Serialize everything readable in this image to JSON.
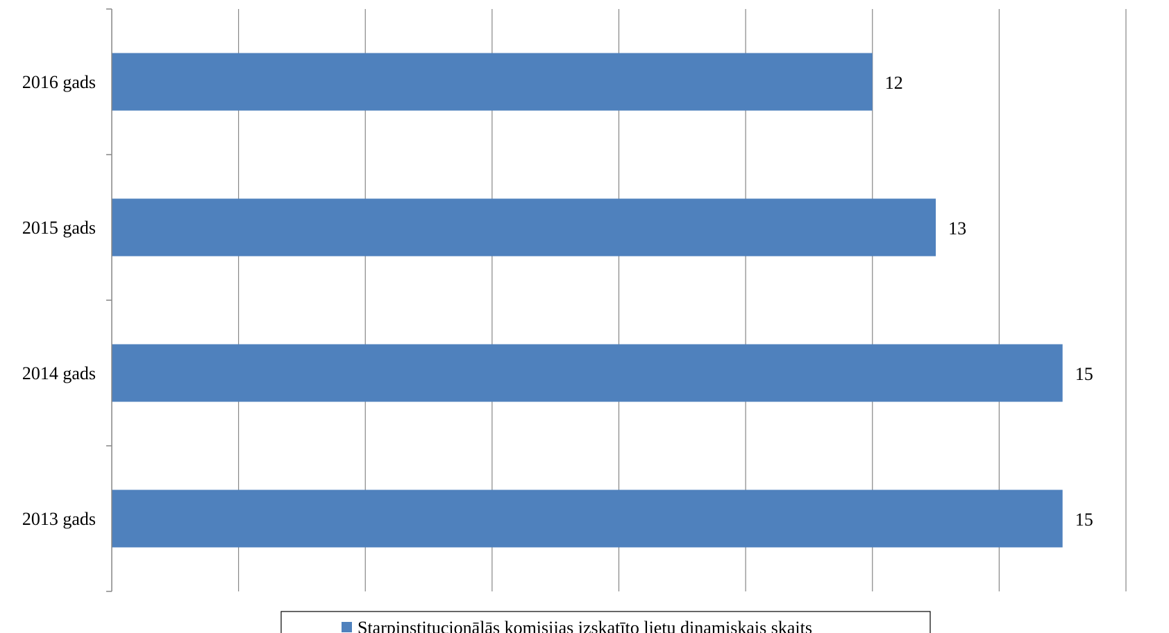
{
  "chart_data": {
    "type": "bar",
    "orientation": "horizontal",
    "title": "",
    "xlabel": "",
    "ylabel": "",
    "categories": [
      "2016 gads",
      "2015 gads",
      "2014 gads",
      "2013 gads"
    ],
    "series": [
      {
        "name": "Starpinstitucionālās komisijas izskatīto lietu dinamiskais skaits",
        "values": [
          12,
          13,
          15,
          15
        ],
        "color": "#4F81BD"
      }
    ],
    "data_labels": [
      "12",
      "13",
      "15",
      "15"
    ],
    "xlim": [
      0,
      16
    ],
    "x_gridline_step": 2,
    "x_tick_labels_shown": false,
    "grid": true,
    "gridline_color": "#868686",
    "legend_position": "bottom"
  }
}
